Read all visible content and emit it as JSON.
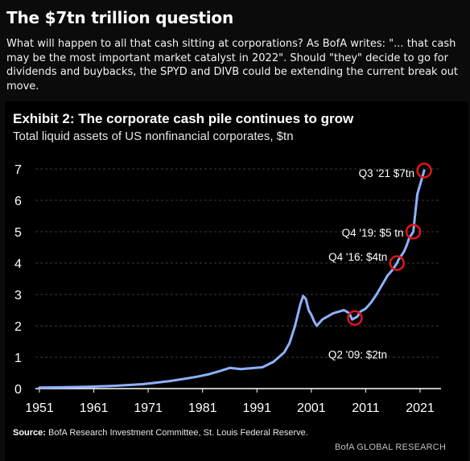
{
  "post": {
    "title": "The $7tn trillion question",
    "description": "What will happen to all that cash sitting at corporations? As BofA writes: \"... that cash may be the most important market catalyst in 2022\". Should \"they\" decide to go for dividends and buybacks, the SPYD and DIVB could be extending the current break out move."
  },
  "exhibit": {
    "title": "Exhibit 2: The corporate cash pile continues to grow",
    "subtitle": "Total liquid assets of US nonfinancial corporates, $tn",
    "source_label": "Source:",
    "source_text": "BofA Research Investment Committee, St. Louis Federal Reserve.",
    "credit": "BofA GLOBAL RESEARCH"
  },
  "colors": {
    "line": "#8eb2ff",
    "marker": "#e0161b",
    "axis": "#ffffff",
    "grid": "#3a3a3a",
    "background": "#000000"
  },
  "chart_data": {
    "type": "line",
    "title": "Exhibit 2: The corporate cash pile continues to grow",
    "subtitle": "Total liquid assets of US nonfinancial corporates, $tn",
    "xlabel": "",
    "ylabel": "",
    "xlim": [
      1951,
      2022
    ],
    "ylim": [
      0,
      7
    ],
    "xticks": [
      1951,
      1961,
      1971,
      1981,
      1991,
      2001,
      2011,
      2021
    ],
    "yticks": [
      0,
      1,
      2,
      3,
      4,
      5,
      6,
      7
    ],
    "grid": "horizontal dashed",
    "series": [
      {
        "x": [
          1951,
          1955,
          1960,
          1965,
          1970,
          1972,
          1975,
          1978,
          1980,
          1982,
          1984,
          1986,
          1988,
          1990,
          1992,
          1994,
          1996,
          1997,
          1998,
          1999,
          1999.5,
          2000,
          2000.5,
          2001,
          2001.5,
          2002,
          2002.5,
          2003,
          2004,
          2005,
          2006,
          2007,
          2007.5,
          2008,
          2008.5,
          2009,
          2009.5,
          2010,
          2011,
          2012,
          2013,
          2014,
          2015,
          2016,
          2016.75,
          2017,
          2018,
          2018.5,
          2019,
          2019.75,
          2020,
          2020.25,
          2020.5,
          2021,
          2021.75
        ],
        "y": [
          0.03,
          0.04,
          0.06,
          0.09,
          0.14,
          0.18,
          0.24,
          0.32,
          0.38,
          0.45,
          0.55,
          0.66,
          0.62,
          0.65,
          0.68,
          0.85,
          1.15,
          1.45,
          2.0,
          2.7,
          2.95,
          2.85,
          2.5,
          2.35,
          2.15,
          2.0,
          2.1,
          2.2,
          2.3,
          2.4,
          2.45,
          2.5,
          2.45,
          2.4,
          2.2,
          2.25,
          2.3,
          2.45,
          2.55,
          2.75,
          3.0,
          3.3,
          3.6,
          3.8,
          4.0,
          4.1,
          4.35,
          4.55,
          4.8,
          5.0,
          5.4,
          5.8,
          6.2,
          6.5,
          6.95
        ]
      }
    ],
    "annotations": [
      {
        "label": "Q2 '09: $2tn",
        "x": 2009.0,
        "y": 2.25
      },
      {
        "label": "Q4 '16: $4tn",
        "x": 2016.75,
        "y": 4.0
      },
      {
        "label": "Q4 '19: $5 tn",
        "x": 2019.75,
        "y": 5.0
      },
      {
        "label": "Q3 '21 $7tn",
        "x": 2021.75,
        "y": 6.95
      }
    ]
  }
}
